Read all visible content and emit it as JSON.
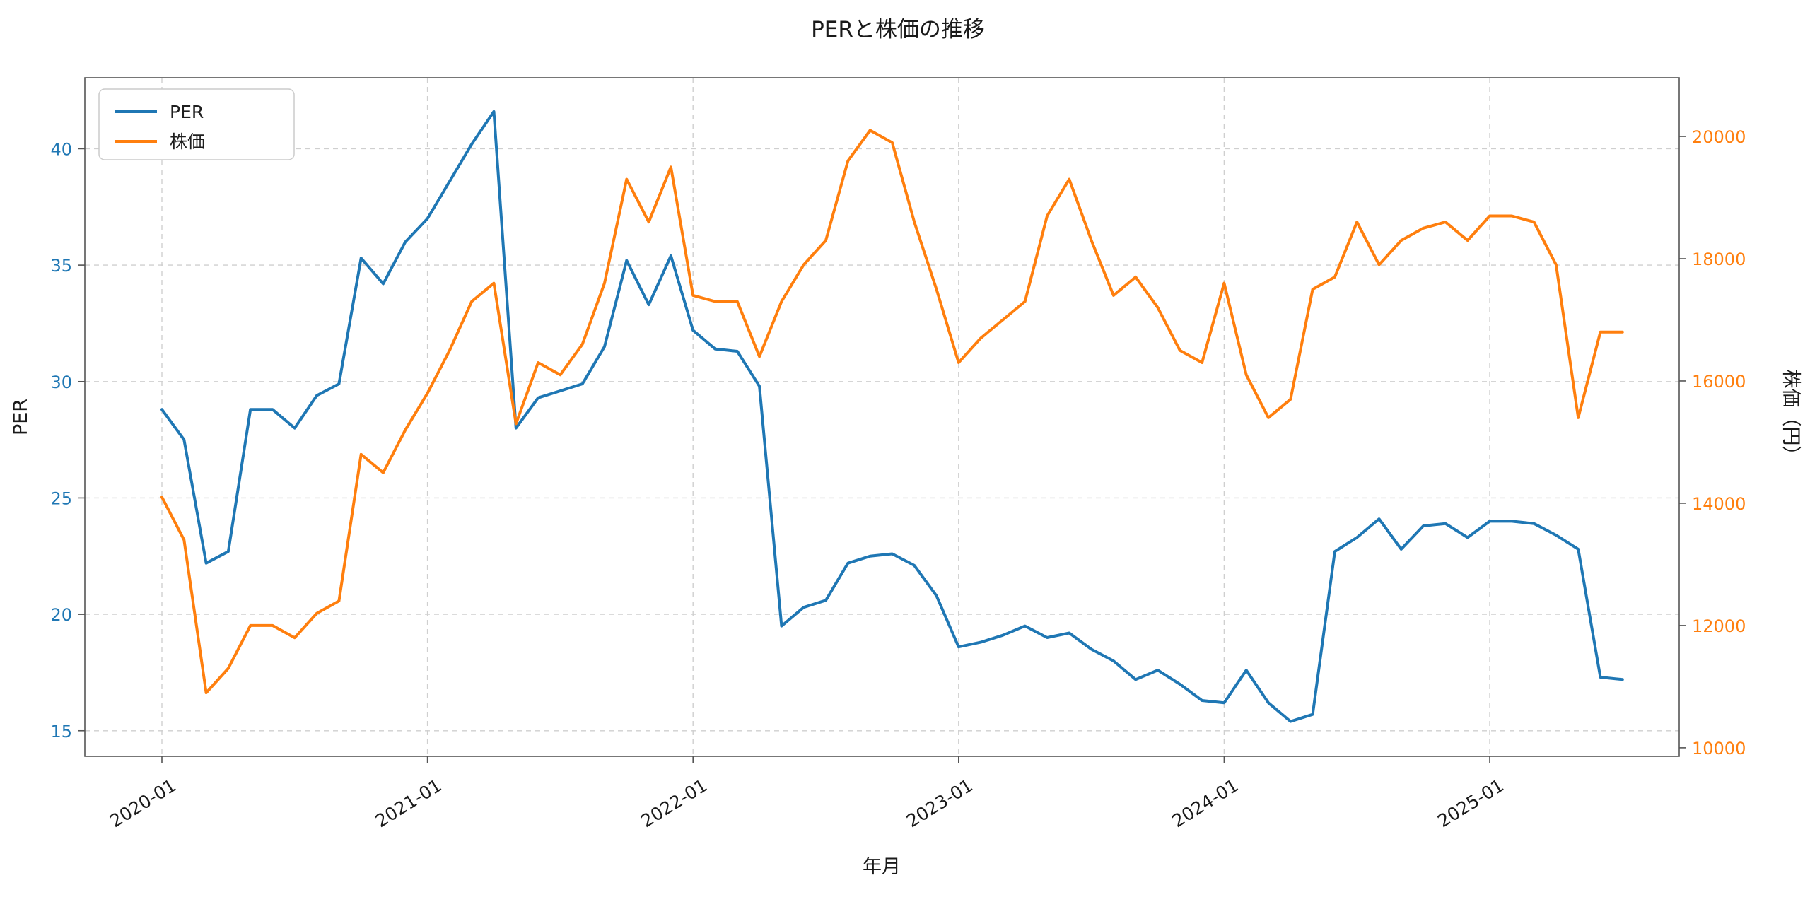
{
  "chart_data": {
    "type": "line",
    "title": "PERと株価の推移",
    "xlabel": "年月",
    "ylabel_left": "PER",
    "ylabel_right": "株価（円）",
    "legend": {
      "position": "top-left",
      "entries": [
        "PER",
        "株価"
      ]
    },
    "grid": {
      "visible": true,
      "style": "dashed",
      "color": "#cfcfcf"
    },
    "x_tick_labels": [
      "2020-01",
      "2021-01",
      "2022-01",
      "2023-01",
      "2024-01",
      "2025-01"
    ],
    "x_tick_indices": [
      0,
      12,
      24,
      36,
      48,
      60
    ],
    "left_ticks": [
      15,
      20,
      25,
      30,
      35,
      40
    ],
    "right_ticks": [
      10000,
      12000,
      14000,
      16000,
      18000,
      20000
    ],
    "left_range": [
      13.9,
      43.05
    ],
    "right_range": [
      9860,
      20960
    ],
    "x": [
      "2020-01",
      "2020-02",
      "2020-03",
      "2020-04",
      "2020-05",
      "2020-06",
      "2020-07",
      "2020-08",
      "2020-09",
      "2020-10",
      "2020-11",
      "2020-12",
      "2021-01",
      "2021-02",
      "2021-03",
      "2021-04",
      "2021-05",
      "2021-06",
      "2021-07",
      "2021-08",
      "2021-09",
      "2021-10",
      "2021-11",
      "2021-12",
      "2022-01",
      "2022-02",
      "2022-03",
      "2022-04",
      "2022-05",
      "2022-06",
      "2022-07",
      "2022-08",
      "2022-09",
      "2022-10",
      "2022-11",
      "2022-12",
      "2023-01",
      "2023-02",
      "2023-03",
      "2023-04",
      "2023-05",
      "2023-06",
      "2023-07",
      "2023-08",
      "2023-09",
      "2023-10",
      "2023-11",
      "2023-12",
      "2024-01",
      "2024-02",
      "2024-03",
      "2024-04",
      "2024-05",
      "2024-06",
      "2024-07",
      "2024-08",
      "2024-09",
      "2024-10",
      "2024-11",
      "2024-12",
      "2025-01",
      "2025-02",
      "2025-03",
      "2025-04",
      "2025-05",
      "2025-06",
      "2025-07"
    ],
    "series": [
      {
        "name": "PER",
        "axis": "left",
        "color": "#1f77b4",
        "values": [
          28.8,
          27.5,
          22.2,
          22.7,
          28.8,
          28.8,
          28.0,
          29.4,
          29.9,
          35.3,
          34.2,
          36.0,
          37.0,
          38.6,
          40.2,
          41.6,
          28.0,
          29.3,
          29.6,
          29.9,
          31.5,
          35.2,
          33.3,
          35.4,
          32.2,
          31.4,
          31.3,
          29.8,
          19.5,
          20.3,
          20.6,
          22.2,
          22.5,
          22.6,
          22.1,
          20.8,
          18.6,
          18.8,
          19.1,
          19.5,
          19.0,
          19.2,
          18.5,
          18.0,
          17.2,
          17.6,
          17.0,
          16.3,
          16.2,
          17.6,
          16.2,
          15.4,
          15.7,
          22.7,
          23.3,
          24.1,
          22.8,
          23.8,
          23.9,
          23.3,
          24.0,
          24.0,
          23.9,
          23.4,
          22.8,
          17.3,
          17.2
        ]
      },
      {
        "name": "株価",
        "axis": "right",
        "color": "#ff7f0e",
        "values": [
          14100,
          13400,
          10900,
          11300,
          12000,
          12000,
          11800,
          12200,
          12400,
          14800,
          14500,
          15200,
          15800,
          16500,
          17300,
          17600,
          15300,
          16300,
          16100,
          16600,
          17600,
          19300,
          18600,
          19500,
          17400,
          17300,
          17300,
          16400,
          17300,
          17900,
          18300,
          19600,
          20100,
          19900,
          18600,
          17500,
          16300,
          16700,
          17000,
          17300,
          18700,
          19300,
          18300,
          17400,
          17700,
          17200,
          16500,
          16300,
          17600,
          16100,
          15400,
          15700,
          17500,
          17700,
          18600,
          17900,
          18300,
          18500,
          18600,
          18300,
          18700,
          18700,
          18600,
          17900,
          15400,
          16800,
          16800
        ]
      }
    ]
  }
}
